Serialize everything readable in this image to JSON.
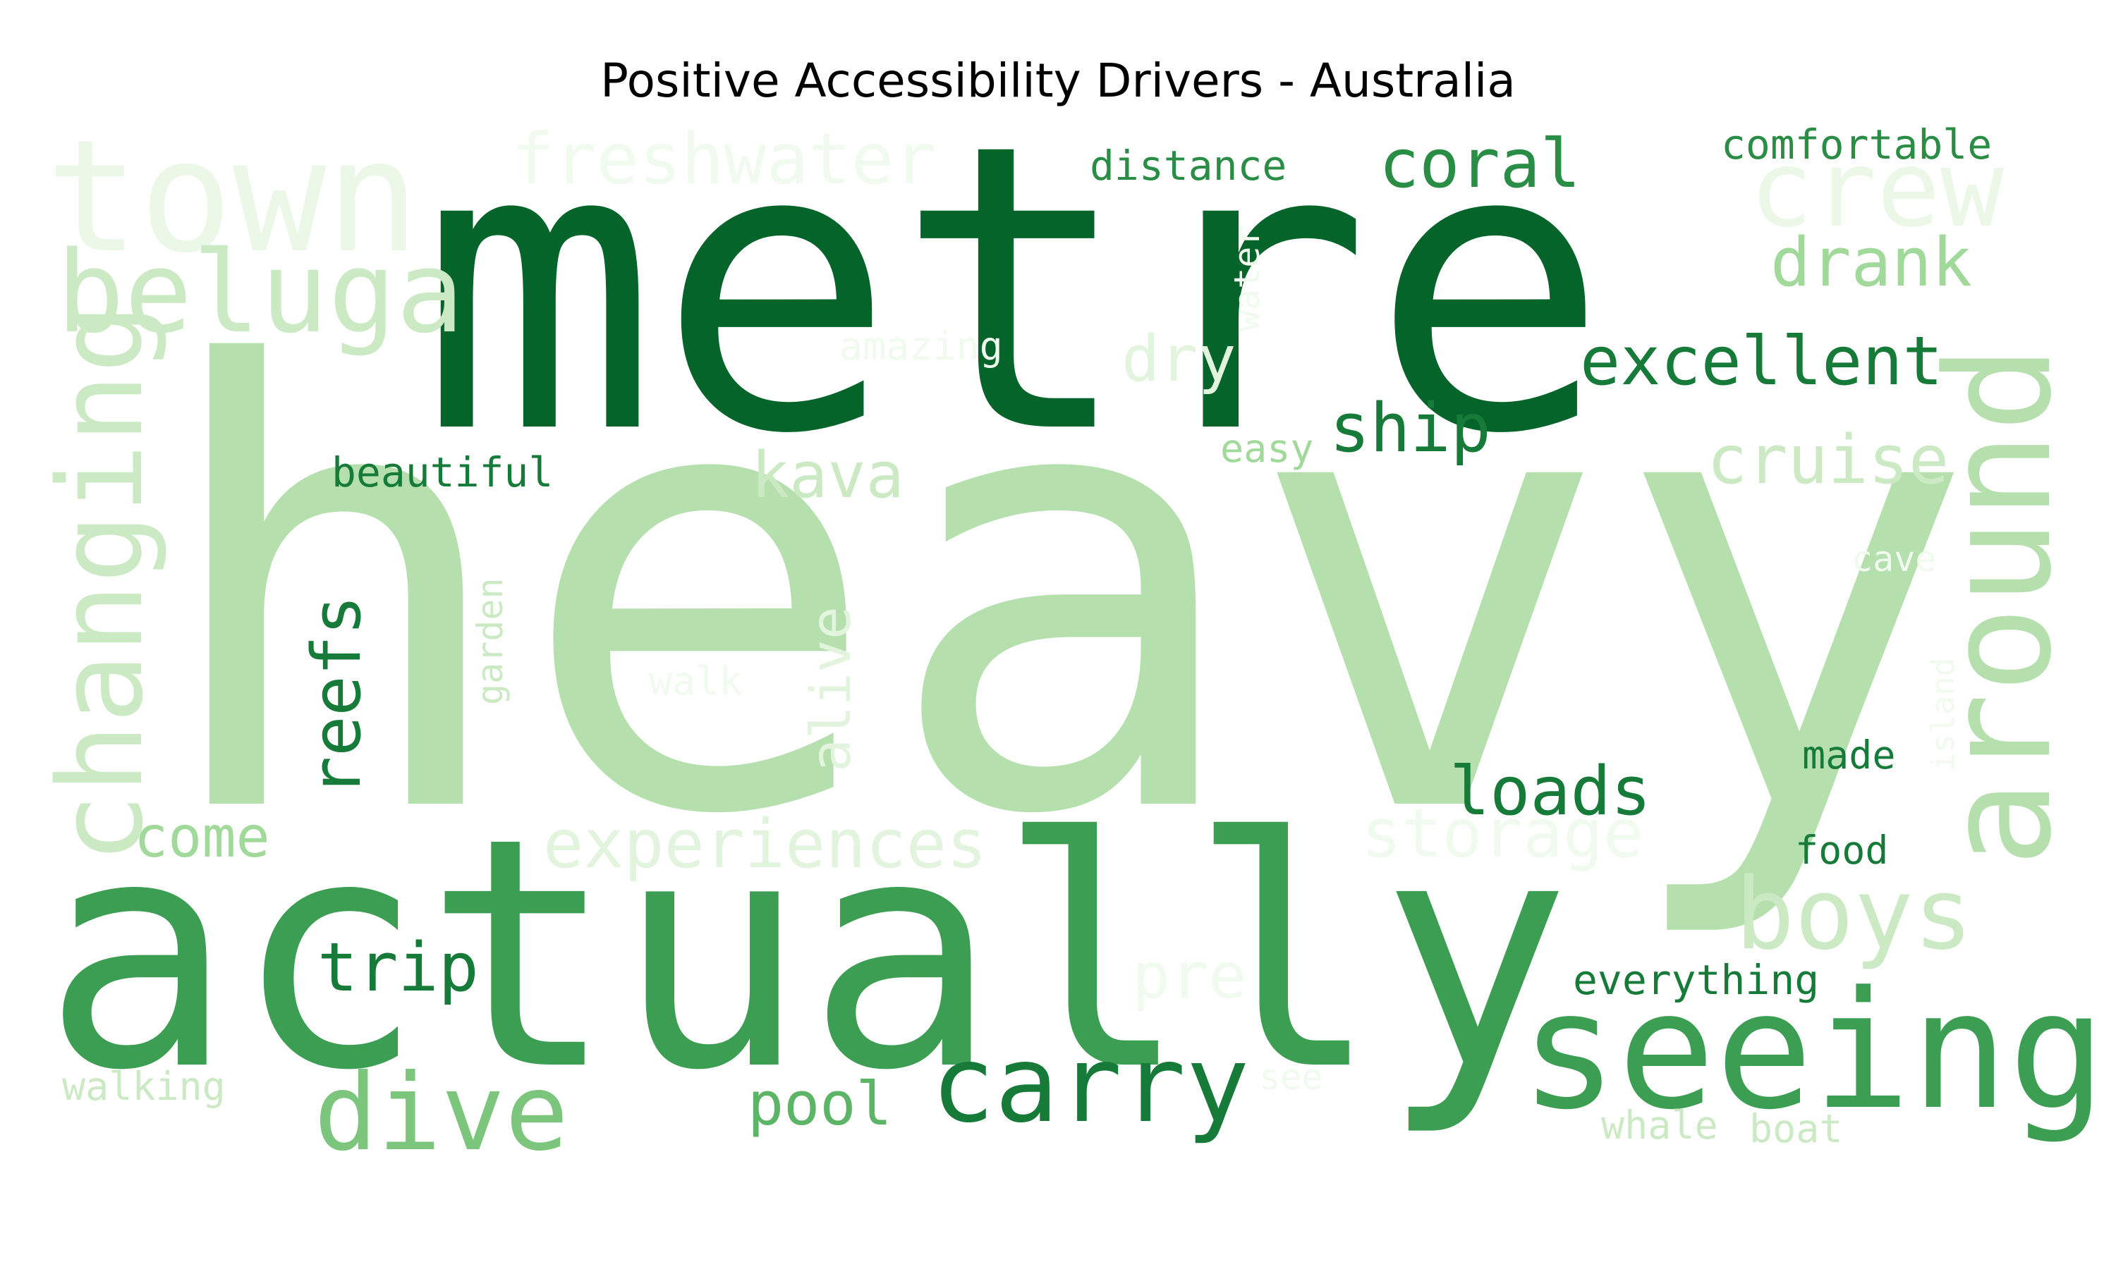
{
  "chart_data": {
    "type": "wordcloud",
    "title": "Positive Accessibility Drivers - Australia",
    "colormap": "Greens",
    "words": [
      {
        "text": "heavy",
        "weight": 1.0,
        "color": "#b5e0ae"
      },
      {
        "text": "metre",
        "weight": 0.84,
        "color": "#046429"
      },
      {
        "text": "actually",
        "weight": 0.72,
        "color": "#3c9e53"
      },
      {
        "text": "seeing",
        "weight": 0.36,
        "color": "#3c9e53"
      },
      {
        "text": "around",
        "weight": 0.3,
        "color": "#b5e0ae"
      },
      {
        "text": "town",
        "weight": 0.34,
        "color": "#ecf8e7"
      },
      {
        "text": "changing",
        "weight": 0.28,
        "color": "#cbeac4"
      },
      {
        "text": "beluga",
        "weight": 0.26,
        "color": "#cbeac4"
      },
      {
        "text": "carry",
        "weight": 0.22,
        "color": "#167a38"
      },
      {
        "text": "dive",
        "weight": 0.22,
        "color": "#7bc57c"
      },
      {
        "text": "crew",
        "weight": 0.22,
        "color": "#ecf8e7"
      },
      {
        "text": "boys",
        "weight": 0.21,
        "color": "#cbeac4"
      },
      {
        "text": "freshwater",
        "weight": 0.16,
        "color": "#f1faee"
      },
      {
        "text": "reefs",
        "weight": 0.16,
        "color": "#167a38"
      },
      {
        "text": "loads",
        "weight": 0.14,
        "color": "#167a38"
      },
      {
        "text": "excellent",
        "weight": 0.14,
        "color": "#167a38"
      },
      {
        "text": "coral",
        "weight": 0.14,
        "color": "#2a8d46"
      },
      {
        "text": "drank",
        "weight": 0.14,
        "color": "#a1d99b"
      },
      {
        "text": "trip",
        "weight": 0.14,
        "color": "#167a38"
      },
      {
        "text": "experiences",
        "weight": 0.14,
        "color": "#e3f4de"
      },
      {
        "text": "storage",
        "weight": 0.14,
        "color": "#f1faee"
      },
      {
        "text": "cruise",
        "weight": 0.14,
        "color": "#cbeac4"
      },
      {
        "text": "ship",
        "weight": 0.14,
        "color": "#167a38"
      },
      {
        "text": "kava",
        "weight": 0.13,
        "color": "#cbeac4"
      },
      {
        "text": "dry",
        "weight": 0.13,
        "color": "#e3f4de"
      },
      {
        "text": "pre",
        "weight": 0.13,
        "color": "#f1faee"
      },
      {
        "text": "pool",
        "weight": 0.12,
        "color": "#5cb467"
      },
      {
        "text": "come",
        "weight": 0.12,
        "color": "#a1d99b"
      },
      {
        "text": "alive",
        "weight": 0.11,
        "color": "#e3f4de"
      },
      {
        "text": "comfortable",
        "weight": 0.09,
        "color": "#2a8d46"
      },
      {
        "text": "distance",
        "weight": 0.09,
        "color": "#2a8d46"
      },
      {
        "text": "beautiful",
        "weight": 0.09,
        "color": "#167a38"
      },
      {
        "text": "everything",
        "weight": 0.09,
        "color": "#167a38"
      },
      {
        "text": "walking",
        "weight": 0.08,
        "color": "#cbeac4"
      },
      {
        "text": "whale",
        "weight": 0.08,
        "color": "#cbeac4"
      },
      {
        "text": "boat",
        "weight": 0.08,
        "color": "#cbeac4"
      },
      {
        "text": "made",
        "weight": 0.08,
        "color": "#167a38"
      },
      {
        "text": "food",
        "weight": 0.08,
        "color": "#167a38"
      },
      {
        "text": "easy",
        "weight": 0.08,
        "color": "#a1d99b"
      },
      {
        "text": "garden",
        "weight": 0.07,
        "color": "#cbeac4"
      },
      {
        "text": "amazing",
        "weight": 0.07,
        "color": "#f1faee"
      },
      {
        "text": "water",
        "weight": 0.07,
        "color": "#f1faee"
      },
      {
        "text": "walk",
        "weight": 0.07,
        "color": "#f1faee"
      },
      {
        "text": "cave",
        "weight": 0.07,
        "color": "#f1faee"
      },
      {
        "text": "island",
        "weight": 0.06,
        "color": "#f1faee"
      },
      {
        "text": "see",
        "weight": 0.06,
        "color": "#f1faee"
      }
    ]
  }
}
